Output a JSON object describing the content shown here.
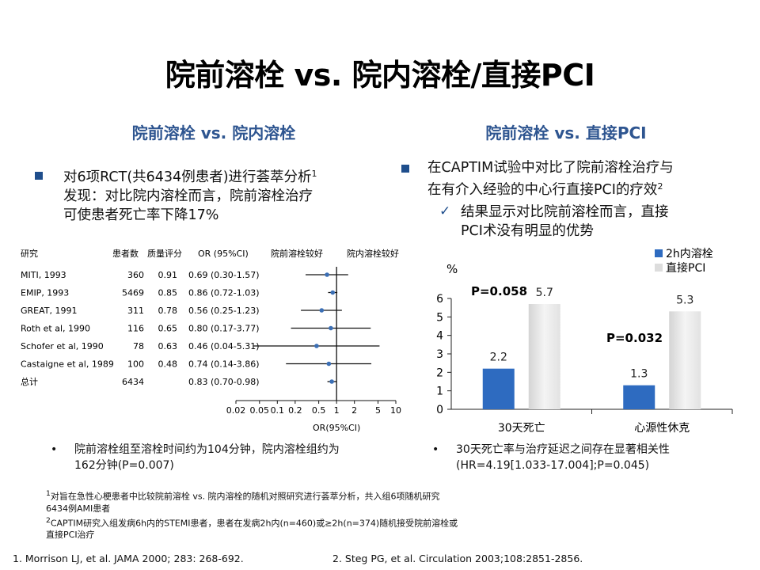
{
  "title": "院前溶栓 vs. 院内溶栓/直接PCI",
  "left": {
    "subtitle": "院前溶栓 vs. 院内溶栓",
    "bullet_line1": "对6项RCT(共6434例患者)进行荟萃分析",
    "bullet_line1_sup": "1",
    "bullet_line2": "发现：对比院内溶栓而言，院前溶栓治疗",
    "bullet_line3": "可使患者死亡率下降17%",
    "note_line1": "院前溶栓组至溶栓时间约为104分钟，院内溶栓组约为",
    "note_line2": "162分钟(P=0.007)"
  },
  "right": {
    "subtitle": "院前溶栓 vs. 直接PCI",
    "bullet_line1": "在CAPTIM试验中对比了院前溶栓治疗与",
    "bullet_line2": "在有介入经验的中心行直接PCI的疗效",
    "bullet_line2_sup": "2",
    "check_line1": "结果显示对比院前溶栓而言，直接",
    "check_line2": "PCI术没有明显的优势",
    "note_line1": "30天死亡率与治疗延迟之间存在显著相关性",
    "note_line2": "(HR=4.19[1.033-17.004];P=0.045)"
  },
  "footnotes": {
    "fn1_line1": "对旨在急性心梗患者中比较院前溶栓 vs. 院内溶栓的随机对照研究进行荟萃分析，共入组6项随机研究",
    "fn1_sup": "1",
    "fn1_line2": "6434例AMI患者",
    "fn2_line1": "CAPTIM研究入组发病6h内的STEMI患者，患者在发病2h内(n=460)或≥2h(n=374)随机接受院前溶栓或",
    "fn2_sup": "2",
    "fn2_line2": "直接PCI治疗"
  },
  "references": {
    "ref1": "1. Morrison LJ, et al. JAMA 2000; 283: 268-692.",
    "ref2": "2. Steg PG, et al. Circulation 2003;108:2851-2856."
  },
  "chart_data": [
    {
      "type": "forest",
      "headers": [
        "研究",
        "患者数",
        "质量评分",
        "OR (95%CI)",
        "院前溶栓较好",
        "院内溶栓较好"
      ],
      "rows": [
        {
          "study": "MITI, 1993",
          "n": "360",
          "score": "0.91",
          "or_text": "0.69 (0.30-1.57)",
          "or": 0.69,
          "lo": 0.3,
          "hi": 1.57
        },
        {
          "study": "EMIP, 1993",
          "n": "5469",
          "score": "0.85",
          "or_text": "0.86 (0.72-1.03)",
          "or": 0.86,
          "lo": 0.72,
          "hi": 1.03
        },
        {
          "study": "GREAT, 1991",
          "n": "311",
          "score": "0.78",
          "or_text": "0.56 (0.25-1.23)",
          "or": 0.56,
          "lo": 0.25,
          "hi": 1.23
        },
        {
          "study": "Roth et al, 1990",
          "n": "116",
          "score": "0.65",
          "or_text": "0.80 (0.17-3.77)",
          "or": 0.8,
          "lo": 0.17,
          "hi": 3.77
        },
        {
          "study": "Schofer et al, 1990",
          "n": "78",
          "score": "0.63",
          "or_text": "0.46 (0.04-5.31)",
          "or": 0.46,
          "lo": 0.04,
          "hi": 5.31
        },
        {
          "study": "Castaigne et al, 1989",
          "n": "100",
          "score": "0.48",
          "or_text": "0.74 (0.14-3.86)",
          "or": 0.74,
          "lo": 0.14,
          "hi": 3.86
        },
        {
          "study": "总计",
          "n": "6434",
          "score": "",
          "or_text": "0.83 (0.70-0.98)",
          "or": 0.83,
          "lo": 0.7,
          "hi": 0.98
        }
      ],
      "x_ticks": [
        0.02,
        0.05,
        0.1,
        0.2,
        0.5,
        1,
        2,
        5,
        10
      ],
      "x_tick_labels": [
        "0.02",
        "0.05",
        "0.1",
        "0.2",
        "0.5",
        "1",
        "2",
        "5",
        "10"
      ],
      "xlabel": "OR(95%CI)",
      "xscale": "log",
      "reference_line": 1
    },
    {
      "type": "bar",
      "categories": [
        "30天死亡",
        "心源性休克"
      ],
      "series": [
        {
          "name": "2h内溶栓",
          "values": [
            2.2,
            1.3
          ],
          "color": "#2e6bc0"
        },
        {
          "name": "直接PCI",
          "values": [
            5.7,
            5.3
          ],
          "color": "#e6e6e6"
        }
      ],
      "value_labels": [
        [
          "2.2",
          "1.3"
        ],
        [
          "5.7",
          "5.3"
        ]
      ],
      "p_values": [
        "P=0.058",
        "P=0.032"
      ],
      "ylabel": "%",
      "ylim": [
        0,
        6
      ],
      "y_ticks": [
        "0",
        "1",
        "2",
        "3",
        "4",
        "5",
        "6"
      ],
      "legend_position": "top-right",
      "grid": false
    }
  ]
}
